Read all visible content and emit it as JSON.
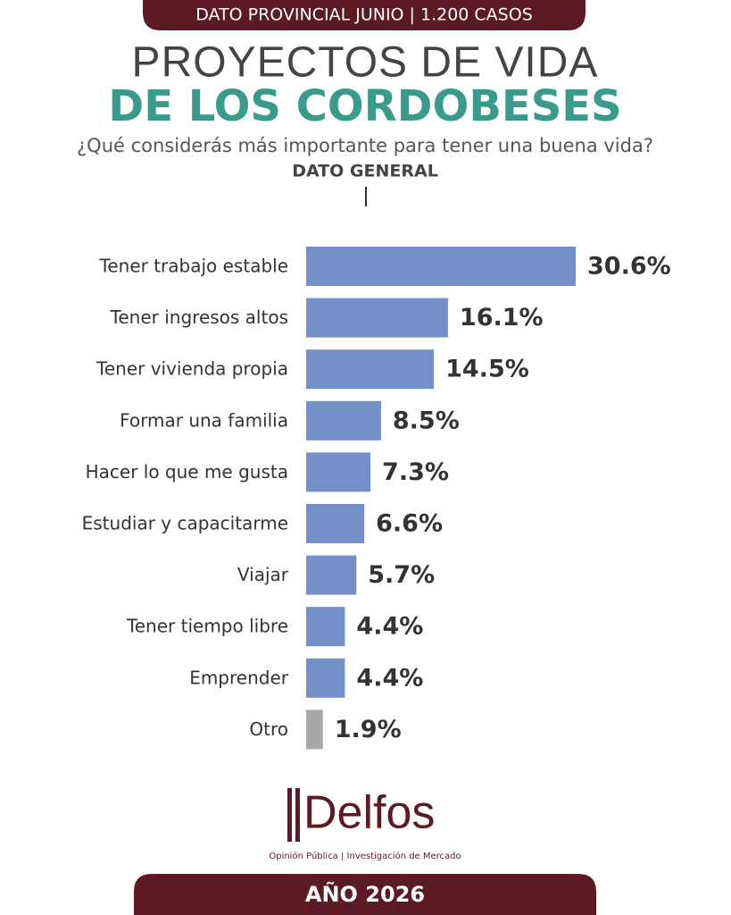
{
  "header": {
    "banner": "DATO PROVINCIAL JUNIO | 1.200 CASOS",
    "title_line1": "PROYECTOS DE VIDA",
    "title_line2": "DE LOS CORDOBESES",
    "question": "¿Qué considerás más importante para tener una buena vida?",
    "section": "DATO GENERAL"
  },
  "chart_data": {
    "type": "bar",
    "orientation": "horizontal",
    "categories": [
      "Tener trabajo estable",
      "Tener ingresos altos",
      "Tener vivienda propia",
      "Formar una familia",
      "Hacer lo que me gusta",
      "Estudiar y capacitarme",
      "Viajar",
      "Tener tiempo libre",
      "Emprender",
      "Otro"
    ],
    "values": [
      30.6,
      16.1,
      14.5,
      8.5,
      7.3,
      6.6,
      5.7,
      4.4,
      4.4,
      1.9
    ],
    "value_labels": [
      "30.6%",
      "16.1%",
      "14.5%",
      "8.5%",
      "7.3%",
      "6.6%",
      "5.7%",
      "4.4%",
      "4.4%",
      "1.9%"
    ],
    "colors": [
      "#7390c9",
      "#7390c9",
      "#7390c9",
      "#7390c9",
      "#7390c9",
      "#7390c9",
      "#7390c9",
      "#7390c9",
      "#7390c9",
      "#a9a9ab"
    ]
  },
  "logo": {
    "name": "Delfos",
    "tagline": "Opinión Pública | Investigación de Mercado"
  },
  "footer": {
    "year": "AÑO 2026"
  }
}
